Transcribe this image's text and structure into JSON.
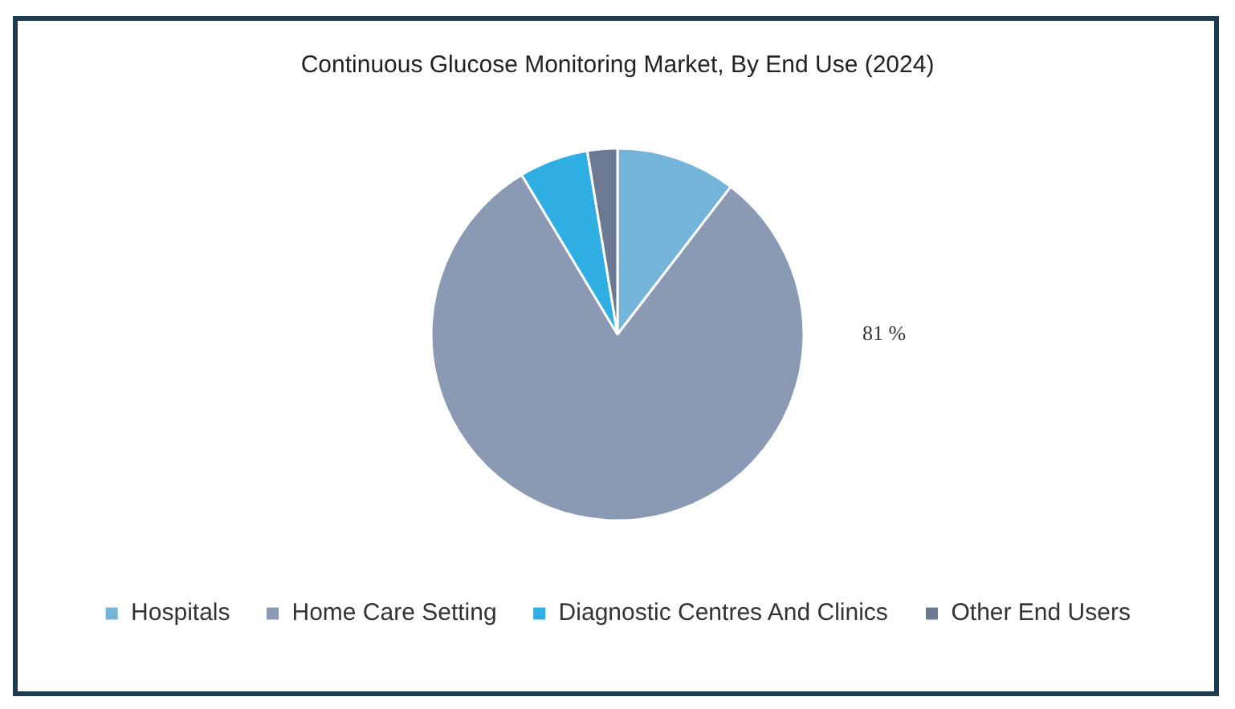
{
  "chart_data": {
    "type": "pie",
    "title": "Continuous Glucose Monitoring Market, By End Use (2024)",
    "categories": [
      "Hospitals",
      "Home Care Setting",
      "Diagnostic Centres And Clinics",
      "Other End Users"
    ],
    "values": [
      10.4,
      81,
      6,
      2.6
    ],
    "colors": [
      "#74b4d8",
      "#8a9ab4",
      "#2eaee2",
      "#6b7a92"
    ],
    "value_labels": [
      null,
      "81 %",
      null,
      null
    ],
    "legend": "bottom"
  }
}
